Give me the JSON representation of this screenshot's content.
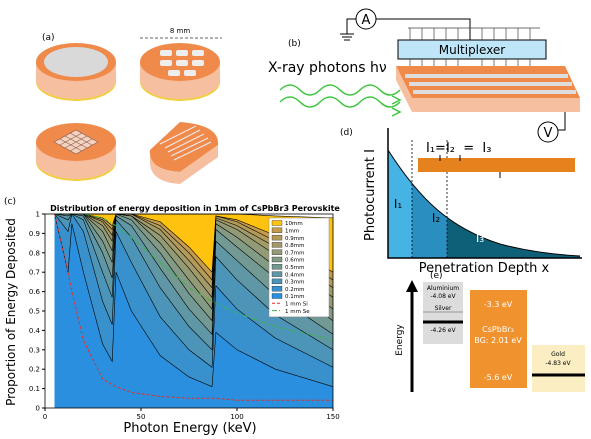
{
  "panel_a": {
    "label": "(a)",
    "scale": "8 mm"
  },
  "panel_b": {
    "label": "(b)",
    "multiplexer": "Multiplexer",
    "ammeter": "A",
    "voltage": "V",
    "xray": "X-ray photons hν"
  },
  "panel_d": {
    "label": "(d)",
    "ylabel": "Photocurrent I",
    "xlabel": "Penetration Depth x",
    "i1": "I₁",
    "i2": "I₂",
    "i3": "I₃",
    "equation": "I₁=I₂  =  I₃"
  },
  "panel_e": {
    "label": "(e)",
    "axis": "Energy",
    "aluminium": "Aluminium",
    "al_wf": "-4.08 eV",
    "silver": "Silver",
    "ag_wf": "-4.26 eV",
    "cb": "-3.3 eV",
    "material": "CsPbBr₃",
    "bandgap": "BG: 2.01 eV",
    "vb": "-5.6 eV",
    "gold": "Gold",
    "au_wf": "-4.83 eV"
  },
  "chart_data": {
    "type": "area",
    "label": "(c)",
    "title": "Distribution of energy deposition in 1mm of CsPbBr3 Perovskite",
    "xlabel": "Photon Energy (keV)",
    "ylabel": "Proportion of Energy Deposited",
    "x": [
      5,
      12,
      14,
      20,
      30,
      35,
      37,
      45,
      60,
      75,
      87,
      89,
      100,
      120,
      150
    ],
    "xlim": [
      0,
      150
    ],
    "xticks": [
      0,
      50,
      100,
      150
    ],
    "ylim": [
      0,
      1
    ],
    "yticks": [
      0,
      0.1,
      0.2,
      0.3,
      0.4,
      0.5,
      0.6,
      0.7,
      0.8,
      0.9,
      1
    ],
    "legend": "upper right",
    "series": [
      {
        "name": "10mm",
        "color": "#ffc20e",
        "values": [
          1,
          1,
          1,
          1,
          1,
          1,
          1,
          1,
          1,
          1,
          1,
          1,
          1,
          0.99,
          0.98
        ]
      },
      {
        "name": "1mm",
        "color": "#c49b4e",
        "values": [
          1,
          1,
          1,
          1,
          0.98,
          0.94,
          1,
          1,
          0.96,
          0.83,
          0.7,
          0.99,
          0.97,
          0.89,
          0.7
        ]
      },
      {
        "name": "0.9mm",
        "color": "#b29a5a",
        "values": [
          1,
          1,
          1,
          1,
          0.97,
          0.92,
          1,
          1,
          0.94,
          0.8,
          0.66,
          0.99,
          0.96,
          0.86,
          0.66
        ]
      },
      {
        "name": "0.8mm",
        "color": "#a29a68",
        "values": [
          1,
          1,
          1,
          1,
          0.96,
          0.89,
          1,
          1,
          0.92,
          0.76,
          0.62,
          0.98,
          0.94,
          0.83,
          0.62
        ]
      },
      {
        "name": "0.7mm",
        "color": "#939a76",
        "values": [
          1,
          1,
          1,
          1,
          0.94,
          0.86,
          1,
          0.99,
          0.89,
          0.72,
          0.57,
          0.97,
          0.92,
          0.79,
          0.57
        ]
      },
      {
        "name": "0.6mm",
        "color": "#839a85",
        "values": [
          1,
          1,
          1,
          1,
          0.91,
          0.81,
          1,
          0.99,
          0.85,
          0.66,
          0.51,
          0.95,
          0.88,
          0.73,
          0.51
        ]
      },
      {
        "name": "0.5mm",
        "color": "#729994",
        "values": [
          1,
          1,
          1,
          1,
          0.86,
          0.75,
          1,
          0.97,
          0.8,
          0.59,
          0.45,
          0.92,
          0.83,
          0.67,
          0.45
        ]
      },
      {
        "name": "0.4mm",
        "color": "#6097a6",
        "values": [
          1,
          0.99,
          1,
          0.99,
          0.8,
          0.67,
          0.99,
          0.94,
          0.72,
          0.51,
          0.38,
          0.86,
          0.76,
          0.58,
          0.38
        ]
      },
      {
        "name": "0.3mm",
        "color": "#4c94b8",
        "values": [
          1,
          0.97,
          1,
          0.97,
          0.7,
          0.57,
          0.97,
          0.88,
          0.62,
          0.42,
          0.3,
          0.78,
          0.66,
          0.48,
          0.3
        ]
      },
      {
        "name": "0.2mm",
        "color": "#3891cc",
        "values": [
          1,
          0.91,
          1,
          0.91,
          0.55,
          0.43,
          0.91,
          0.75,
          0.47,
          0.3,
          0.21,
          0.63,
          0.51,
          0.36,
          0.21
        ]
      },
      {
        "name": "0.1mm",
        "color": "#2a8fde",
        "values": [
          1,
          0.7,
          0.95,
          0.7,
          0.33,
          0.24,
          0.7,
          0.5,
          0.27,
          0.16,
          0.11,
          0.39,
          0.3,
          0.2,
          0.11
        ]
      },
      {
        "name": "1 mm Si",
        "color": "#e0302c",
        "style": "dashed",
        "values": [
          1,
          0.7,
          0.6,
          0.35,
          0.15,
          0.12,
          0.11,
          0.08,
          0.06,
          0.05,
          0.05,
          0.05,
          0.04,
          0.04,
          0.04
        ]
      },
      {
        "name": "1 mm Se",
        "color": "#3cb44b",
        "style": "dashdot",
        "values": [
          1,
          1,
          1,
          1,
          0.98,
          0.95,
          0.94,
          0.88,
          0.75,
          0.62,
          0.55,
          0.54,
          0.49,
          0.42,
          0.35
        ]
      }
    ]
  }
}
